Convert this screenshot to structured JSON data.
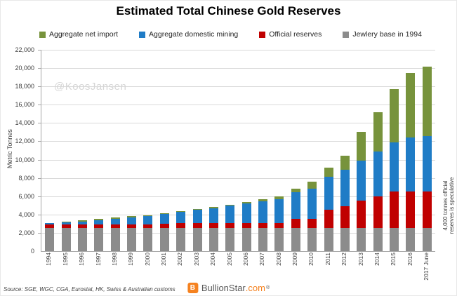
{
  "title": "Estimated Total Chinese Gold Reserves",
  "watermark": "@KoosJansen",
  "y_axis": {
    "label": "Metric Tonnes",
    "max": 22000,
    "step": 2000
  },
  "legend": [
    {
      "label": "Aggregate net import",
      "color": "#77933C"
    },
    {
      "label": "Aggregate domestic mining",
      "color": "#1F7CC6"
    },
    {
      "label": "Official reserves",
      "color": "#C00000"
    },
    {
      "label": "Jewlery base in 1994",
      "color": "#8C8C8C"
    }
  ],
  "chart_data": {
    "type": "bar",
    "subtype": "stacked",
    "title": "Estimated Total Chinese Gold Reserves",
    "xlabel": "",
    "ylabel": "Metric Tonnes",
    "ylim": [
      0,
      22000
    ],
    "grid": true,
    "legend_position": "top",
    "categories": [
      "1994",
      "1995",
      "1996",
      "1997",
      "1998",
      "1999",
      "2000",
      "2001",
      "2002",
      "2003",
      "2004",
      "2005",
      "2006",
      "2007",
      "2008",
      "2009",
      "2010",
      "2011",
      "2012",
      "2013",
      "2014",
      "2015",
      "2016",
      "2017 June"
    ],
    "series": [
      {
        "name": "Jewlery base in 1994",
        "color": "#8C8C8C",
        "values": [
          2500,
          2500,
          2500,
          2500,
          2500,
          2500,
          2500,
          2500,
          2500,
          2500,
          2500,
          2500,
          2500,
          2500,
          2500,
          2500,
          2500,
          2500,
          2500,
          2500,
          2500,
          2500,
          2500,
          2500
        ]
      },
      {
        "name": "Official reserves",
        "color": "#C00000",
        "values": [
          400,
          400,
          400,
          400,
          400,
          400,
          400,
          500,
          600,
          600,
          600,
          600,
          600,
          600,
          600,
          1050,
          1050,
          2000,
          2400,
          3000,
          3500,
          4000,
          4000,
          4000
        ]
      },
      {
        "name": "Aggregate domestic mining",
        "color": "#1F7CC6",
        "values": [
          150,
          250,
          350,
          500,
          650,
          800,
          950,
          1050,
          1200,
          1400,
          1600,
          1850,
          2100,
          2350,
          2600,
          2900,
          3250,
          3600,
          4000,
          4400,
          4900,
          5400,
          5900,
          6100
        ]
      },
      {
        "name": "Aggregate net import",
        "color": "#77933C",
        "values": [
          50,
          50,
          100,
          100,
          100,
          100,
          100,
          100,
          100,
          100,
          100,
          150,
          150,
          200,
          250,
          350,
          800,
          1000,
          1500,
          3100,
          4300,
          5800,
          7100,
          7600
        ]
      }
    ]
  },
  "side_note": {
    "line1": "4,000 tonnes official",
    "line2": "reserves is speculative"
  },
  "footer": {
    "source": "Source: SGE, WGC, CGA, Eurostat, HK, Swiss & Australian customs",
    "brand": {
      "logo_letter": "B",
      "name": "BullionStar",
      "tld": ".com",
      "reg": "®"
    }
  }
}
